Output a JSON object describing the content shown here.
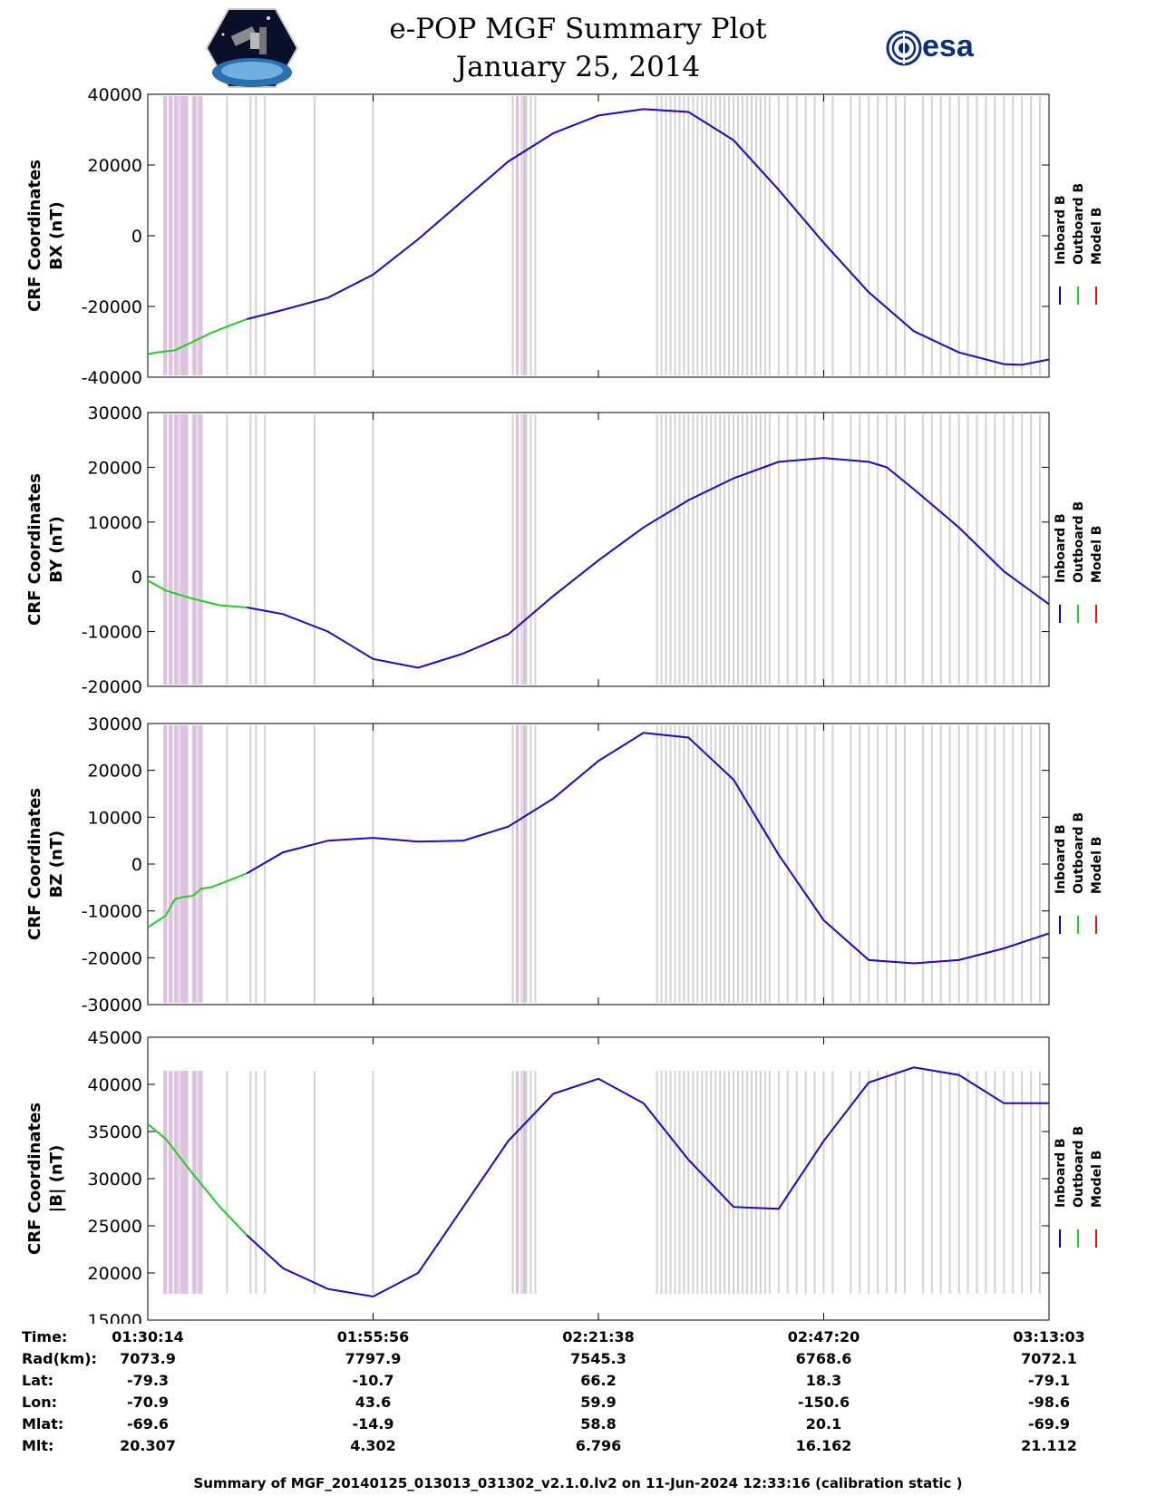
{
  "header": {
    "title_line1": "e-POP MGF Summary Plot",
    "title_line2": "January 25, 2014",
    "logo_left": "cassiope-mission-patch",
    "logo_right": "esa",
    "esa_text": "esa"
  },
  "colors": {
    "inboard": "#0000dd",
    "outboard": "#22cc22",
    "model": "#ee1111",
    "gap_gray": "#d3d3d3",
    "gap_pink": "#e8b8ec"
  },
  "chart_data": [
    {
      "type": "line",
      "ylabel_line1": "CRF Coordinates",
      "ylabel_line2": "BX (nT)",
      "ylim": [
        -40000,
        40000
      ],
      "yticks": [
        40000,
        20000,
        0,
        -20000,
        -40000
      ],
      "ytick_labels": [
        "40000",
        "20000",
        "0",
        "-20000",
        "-40000"
      ],
      "legend": [
        "Inboard B",
        "Outboard B",
        "Model B"
      ],
      "x": [
        0.0,
        0.01,
        0.02,
        0.03,
        0.05,
        0.07,
        0.09,
        0.11,
        0.15,
        0.2,
        0.25,
        0.3,
        0.35,
        0.4,
        0.45,
        0.5,
        0.55,
        0.6,
        0.65,
        0.7,
        0.75,
        0.8,
        0.85,
        0.9,
        0.95,
        0.97,
        1.0
      ],
      "series": [
        {
          "name": "Outboard B",
          "x": [
            0.0,
            0.01,
            0.02,
            0.03,
            0.05,
            0.07,
            0.09,
            0.11
          ],
          "values": [
            -33500,
            -33000,
            -32700,
            -32400,
            -30000,
            -27500,
            -25500,
            -23600
          ]
        },
        {
          "name": "Inboard B",
          "x": [
            0.11,
            0.15,
            0.2,
            0.25,
            0.3,
            0.35,
            0.4,
            0.45,
            0.5,
            0.55,
            0.6,
            0.65,
            0.7,
            0.75,
            0.8,
            0.85,
            0.9,
            0.95,
            0.97,
            1.0
          ],
          "values": [
            -23600,
            -21000,
            -17500,
            -11000,
            -1000,
            10000,
            21000,
            29000,
            34000,
            35800,
            35000,
            27000,
            13000,
            -2000,
            -16000,
            -27000,
            -33000,
            -36300,
            -36500,
            -35000
          ]
        }
      ]
    },
    {
      "type": "line",
      "ylabel_line1": "CRF Coordinates",
      "ylabel_line2": "BY (nT)",
      "ylim": [
        -20000,
        30000
      ],
      "yticks": [
        30000,
        20000,
        10000,
        0,
        -10000,
        -20000
      ],
      "ytick_labels": [
        "30000",
        "20000",
        "10000",
        "0",
        "-10000",
        "-20000"
      ],
      "legend": [
        "Inboard B",
        "Outboard B",
        "Model B"
      ],
      "series": [
        {
          "name": "Outboard B",
          "x": [
            0.0,
            0.02,
            0.05,
            0.08,
            0.11
          ],
          "values": [
            -700,
            -2500,
            -4000,
            -5200,
            -5600
          ]
        },
        {
          "name": "Inboard B",
          "x": [
            0.11,
            0.15,
            0.2,
            0.25,
            0.3,
            0.35,
            0.4,
            0.45,
            0.5,
            0.55,
            0.6,
            0.65,
            0.7,
            0.75,
            0.8,
            0.82,
            0.85,
            0.9,
            0.95,
            1.0
          ],
          "values": [
            -5600,
            -6800,
            -10000,
            -15000,
            -16600,
            -14000,
            -10500,
            -3500,
            3000,
            9000,
            14000,
            18000,
            21000,
            21700,
            21000,
            20000,
            16000,
            9000,
            1000,
            -5000
          ]
        }
      ]
    },
    {
      "type": "line",
      "ylabel_line1": "CRF Coordinates",
      "ylabel_line2": "BZ (nT)",
      "ylim": [
        -30000,
        30000
      ],
      "yticks": [
        30000,
        20000,
        10000,
        0,
        -10000,
        -20000,
        -30000
      ],
      "ytick_labels": [
        "30000",
        "20000",
        "10000",
        "0",
        "-10000",
        "-20000",
        "-30000"
      ],
      "legend": [
        "Inboard B",
        "Outboard B",
        "Model B"
      ],
      "series": [
        {
          "name": "Outboard B",
          "x": [
            0.0,
            0.02,
            0.03,
            0.04,
            0.05,
            0.06,
            0.07,
            0.11
          ],
          "values": [
            -13500,
            -11000,
            -7500,
            -7000,
            -6800,
            -5200,
            -5000,
            -2000
          ]
        },
        {
          "name": "Inboard B",
          "x": [
            0.11,
            0.15,
            0.2,
            0.25,
            0.3,
            0.35,
            0.4,
            0.45,
            0.5,
            0.55,
            0.6,
            0.65,
            0.7,
            0.75,
            0.8,
            0.85,
            0.9,
            0.95,
            1.0
          ],
          "values": [
            -2000,
            2500,
            5000,
            5600,
            4800,
            5000,
            8000,
            14000,
            22000,
            28000,
            27000,
            18000,
            2000,
            -12000,
            -20500,
            -21200,
            -20500,
            -18000,
            -14800
          ]
        }
      ]
    },
    {
      "type": "line",
      "ylabel_line1": "CRF Coordinates",
      "ylabel_line2": "|B| (nT)",
      "ylim": [
        15000,
        45000
      ],
      "yticks": [
        45000,
        40000,
        35000,
        30000,
        25000,
        20000,
        15000
      ],
      "ytick_labels": [
        "45000",
        "40000",
        "35000",
        "30000",
        "25000",
        "20000",
        "15000"
      ],
      "legend": [
        "Inboard B",
        "Outboard B",
        "Model B"
      ],
      "series": [
        {
          "name": "Outboard B",
          "x": [
            0.0,
            0.02,
            0.05,
            0.08,
            0.11
          ],
          "values": [
            35800,
            34200,
            30500,
            27000,
            24000
          ]
        },
        {
          "name": "Inboard B",
          "x": [
            0.11,
            0.15,
            0.2,
            0.25,
            0.3,
            0.35,
            0.4,
            0.45,
            0.5,
            0.55,
            0.6,
            0.65,
            0.7,
            0.75,
            0.8,
            0.85,
            0.9,
            0.95,
            1.0
          ],
          "values": [
            24000,
            20500,
            18300,
            17500,
            20000,
            27000,
            34000,
            39000,
            40600,
            38000,
            32000,
            27000,
            26800,
            34000,
            40200,
            41800,
            41000,
            38000,
            38000
          ]
        }
      ]
    }
  ],
  "gap_markers": {
    "x": [
      0.018,
      0.024,
      0.03,
      0.035,
      0.04,
      0.044,
      0.05,
      0.055,
      0.06,
      0.088,
      0.114,
      0.12,
      0.13,
      0.185,
      0.25,
      0.405,
      0.41,
      0.415,
      0.42,
      0.425,
      0.43,
      0.565,
      0.57,
      0.575,
      0.58,
      0.585,
      0.59,
      0.595,
      0.6,
      0.605,
      0.61,
      0.615,
      0.62,
      0.625,
      0.63,
      0.635,
      0.64,
      0.645,
      0.65,
      0.655,
      0.66,
      0.665,
      0.67,
      0.675,
      0.68,
      0.685,
      0.69,
      0.7,
      0.71,
      0.72,
      0.73,
      0.74,
      0.75,
      0.76,
      0.78,
      0.79,
      0.8,
      0.81,
      0.82,
      0.83,
      0.84,
      0.86,
      0.87,
      0.88,
      0.89,
      0.9,
      0.91,
      0.92,
      0.93,
      0.94,
      0.95,
      0.96,
      0.97,
      0.98,
      0.99
    ],
    "pink_x": [
      0.02,
      0.026,
      0.032,
      0.038,
      0.042,
      0.052,
      0.058,
      0.41,
      0.418
    ]
  },
  "info_table": {
    "labels": [
      "Time:",
      "Rad(km):",
      "Lat:",
      "Lon:",
      "Mlat:",
      "Mlt:"
    ],
    "columns": [
      [
        "01:30:14",
        "7073.9",
        "-79.3",
        "-70.9",
        "-69.6",
        "20.307"
      ],
      [
        "01:55:56",
        "7797.9",
        "-10.7",
        "43.6",
        "-14.9",
        "4.302"
      ],
      [
        "02:21:38",
        "7545.3",
        "66.2",
        "59.9",
        "58.8",
        "6.796"
      ],
      [
        "02:47:20",
        "6768.6",
        "18.3",
        "-150.6",
        "20.1",
        "16.162"
      ],
      [
        "03:13:03",
        "7072.1",
        "-79.1",
        "-98.6",
        "-69.9",
        "21.112"
      ]
    ]
  },
  "footer": "Summary of MGF_20140125_013013_031302_v2.1.0.lv2 on 11-Jun-2024 12:33:16 (calibration static )"
}
